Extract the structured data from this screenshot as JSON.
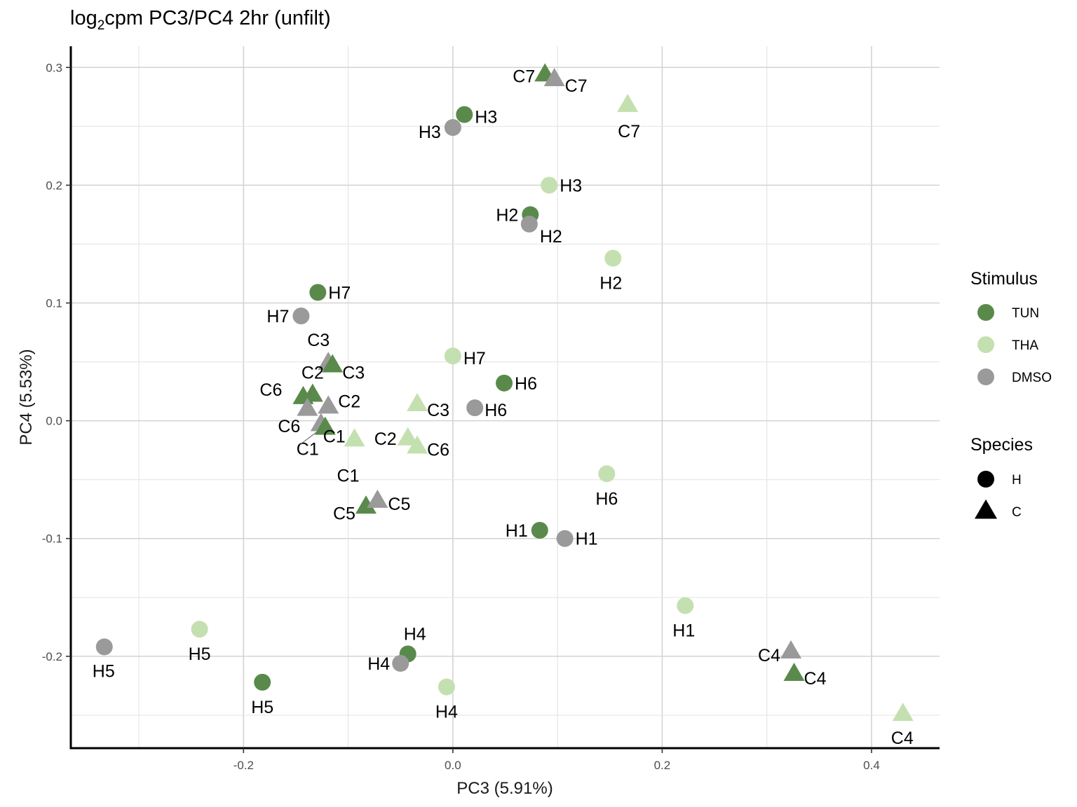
{
  "chart_data": {
    "type": "scatter",
    "title": {
      "pre": "log",
      "sub": "2",
      "post": "cpm PC3/PC4 2hr (unfilt)"
    },
    "xlabel": "PC3 (5.91%)",
    "ylabel": "PC4 (5.53%)",
    "xlim": [
      -0.365,
      0.465
    ],
    "ylim": [
      -0.278,
      0.318
    ],
    "xticks": [
      -0.2,
      0.0,
      0.2,
      0.4
    ],
    "xtick_labels": [
      "-0.2",
      "0.0",
      "0.2",
      "0.4"
    ],
    "yticks": [
      -0.2,
      -0.1,
      0.0,
      0.1,
      0.2,
      0.3
    ],
    "ytick_labels": [
      "-0.2",
      "-0.1",
      "0.0",
      "0.1",
      "0.2",
      "0.3"
    ],
    "grid": true,
    "colors": {
      "TUN": "#5a8a4b",
      "THA": "#c4e0b0",
      "DMSO": "#9a9a9a"
    },
    "legend": {
      "placement": "right",
      "stimulus_title": "Stimulus",
      "stimulus": [
        "TUN",
        "THA",
        "DMSO"
      ],
      "species_title": "Species",
      "species": [
        "H",
        "C"
      ]
    },
    "points": [
      {
        "label": "C7",
        "stimulus": "TUN",
        "species": "C",
        "x": 0.088,
        "y": 0.294
      },
      {
        "label": "C7",
        "stimulus": "DMSO",
        "species": "C",
        "x": 0.097,
        "y": 0.29
      },
      {
        "label": "C7",
        "stimulus": "THA",
        "species": "C",
        "x": 0.167,
        "y": 0.268
      },
      {
        "label": "H3",
        "stimulus": "TUN",
        "species": "H",
        "x": 0.011,
        "y": 0.26
      },
      {
        "label": "H3",
        "stimulus": "DMSO",
        "species": "H",
        "x": 0.0,
        "y": 0.249
      },
      {
        "label": "H3",
        "stimulus": "THA",
        "species": "H",
        "x": 0.092,
        "y": 0.2
      },
      {
        "label": "H2",
        "stimulus": "TUN",
        "species": "H",
        "x": 0.074,
        "y": 0.175
      },
      {
        "label": "H2",
        "stimulus": "DMSO",
        "species": "H",
        "x": 0.073,
        "y": 0.167
      },
      {
        "label": "H2",
        "stimulus": "THA",
        "species": "H",
        "x": 0.153,
        "y": 0.138
      },
      {
        "label": "H7",
        "stimulus": "TUN",
        "species": "H",
        "x": -0.129,
        "y": 0.109
      },
      {
        "label": "H7",
        "stimulus": "DMSO",
        "species": "H",
        "x": -0.145,
        "y": 0.089
      },
      {
        "label": "H7",
        "stimulus": "THA",
        "species": "H",
        "x": 0.0,
        "y": 0.055
      },
      {
        "label": "C3",
        "stimulus": "DMSO",
        "species": "C",
        "x": -0.119,
        "y": 0.049
      },
      {
        "label": "C3",
        "stimulus": "TUN",
        "species": "C",
        "x": -0.115,
        "y": 0.047
      },
      {
        "label": "C3",
        "stimulus": "THA",
        "species": "C",
        "x": -0.034,
        "y": 0.014
      },
      {
        "label": "C2",
        "stimulus": "TUN",
        "species": "C",
        "x": -0.134,
        "y": 0.022
      },
      {
        "label": "C6",
        "stimulus": "TUN",
        "species": "C",
        "x": -0.143,
        "y": 0.02
      },
      {
        "label": "C2",
        "stimulus": "DMSO",
        "species": "C",
        "x": -0.119,
        "y": 0.012
      },
      {
        "label": "C6",
        "stimulus": "DMSO",
        "species": "C",
        "x": -0.139,
        "y": 0.01
      },
      {
        "label": "C1",
        "stimulus": "DMSO",
        "species": "C",
        "x": -0.126,
        "y": -0.003
      },
      {
        "label": "C1",
        "stimulus": "TUN",
        "species": "C",
        "x": -0.122,
        "y": -0.006
      },
      {
        "label": "C2",
        "stimulus": "THA",
        "species": "C",
        "x": -0.043,
        "y": -0.015
      },
      {
        "label": "C6",
        "stimulus": "THA",
        "species": "C",
        "x": -0.034,
        "y": -0.022
      },
      {
        "label": "C1",
        "stimulus": "THA",
        "species": "C",
        "x": -0.094,
        "y": -0.016
      },
      {
        "label": "H6",
        "stimulus": "TUN",
        "species": "H",
        "x": 0.049,
        "y": 0.032
      },
      {
        "label": "H6",
        "stimulus": "DMSO",
        "species": "H",
        "x": 0.021,
        "y": 0.011
      },
      {
        "label": "H6",
        "stimulus": "THA",
        "species": "H",
        "x": 0.147,
        "y": -0.045
      },
      {
        "label": "C5",
        "stimulus": "TUN",
        "species": "C",
        "x": -0.083,
        "y": -0.073
      },
      {
        "label": "C5",
        "stimulus": "DMSO",
        "species": "C",
        "x": -0.072,
        "y": -0.068
      },
      {
        "label": "H1",
        "stimulus": "TUN",
        "species": "H",
        "x": 0.083,
        "y": -0.093
      },
      {
        "label": "H1",
        "stimulus": "DMSO",
        "species": "H",
        "x": 0.107,
        "y": -0.1
      },
      {
        "label": "H1",
        "stimulus": "THA",
        "species": "H",
        "x": 0.222,
        "y": -0.157
      },
      {
        "label": "H5",
        "stimulus": "DMSO",
        "species": "H",
        "x": -0.333,
        "y": -0.192
      },
      {
        "label": "H5",
        "stimulus": "THA",
        "species": "H",
        "x": -0.242,
        "y": -0.177
      },
      {
        "label": "H5",
        "stimulus": "TUN",
        "species": "H",
        "x": -0.182,
        "y": -0.222
      },
      {
        "label": "H4",
        "stimulus": "TUN",
        "species": "H",
        "x": -0.043,
        "y": -0.198
      },
      {
        "label": "H4",
        "stimulus": "DMSO",
        "species": "H",
        "x": -0.05,
        "y": -0.206
      },
      {
        "label": "H4",
        "stimulus": "THA",
        "species": "H",
        "x": -0.006,
        "y": -0.226
      },
      {
        "label": "C4",
        "stimulus": "DMSO",
        "species": "C",
        "x": 0.323,
        "y": -0.196
      },
      {
        "label": "C4",
        "stimulus": "TUN",
        "species": "C",
        "x": 0.326,
        "y": -0.215
      },
      {
        "label": "C4",
        "stimulus": "THA",
        "species": "C",
        "x": 0.43,
        "y": -0.249
      }
    ]
  }
}
